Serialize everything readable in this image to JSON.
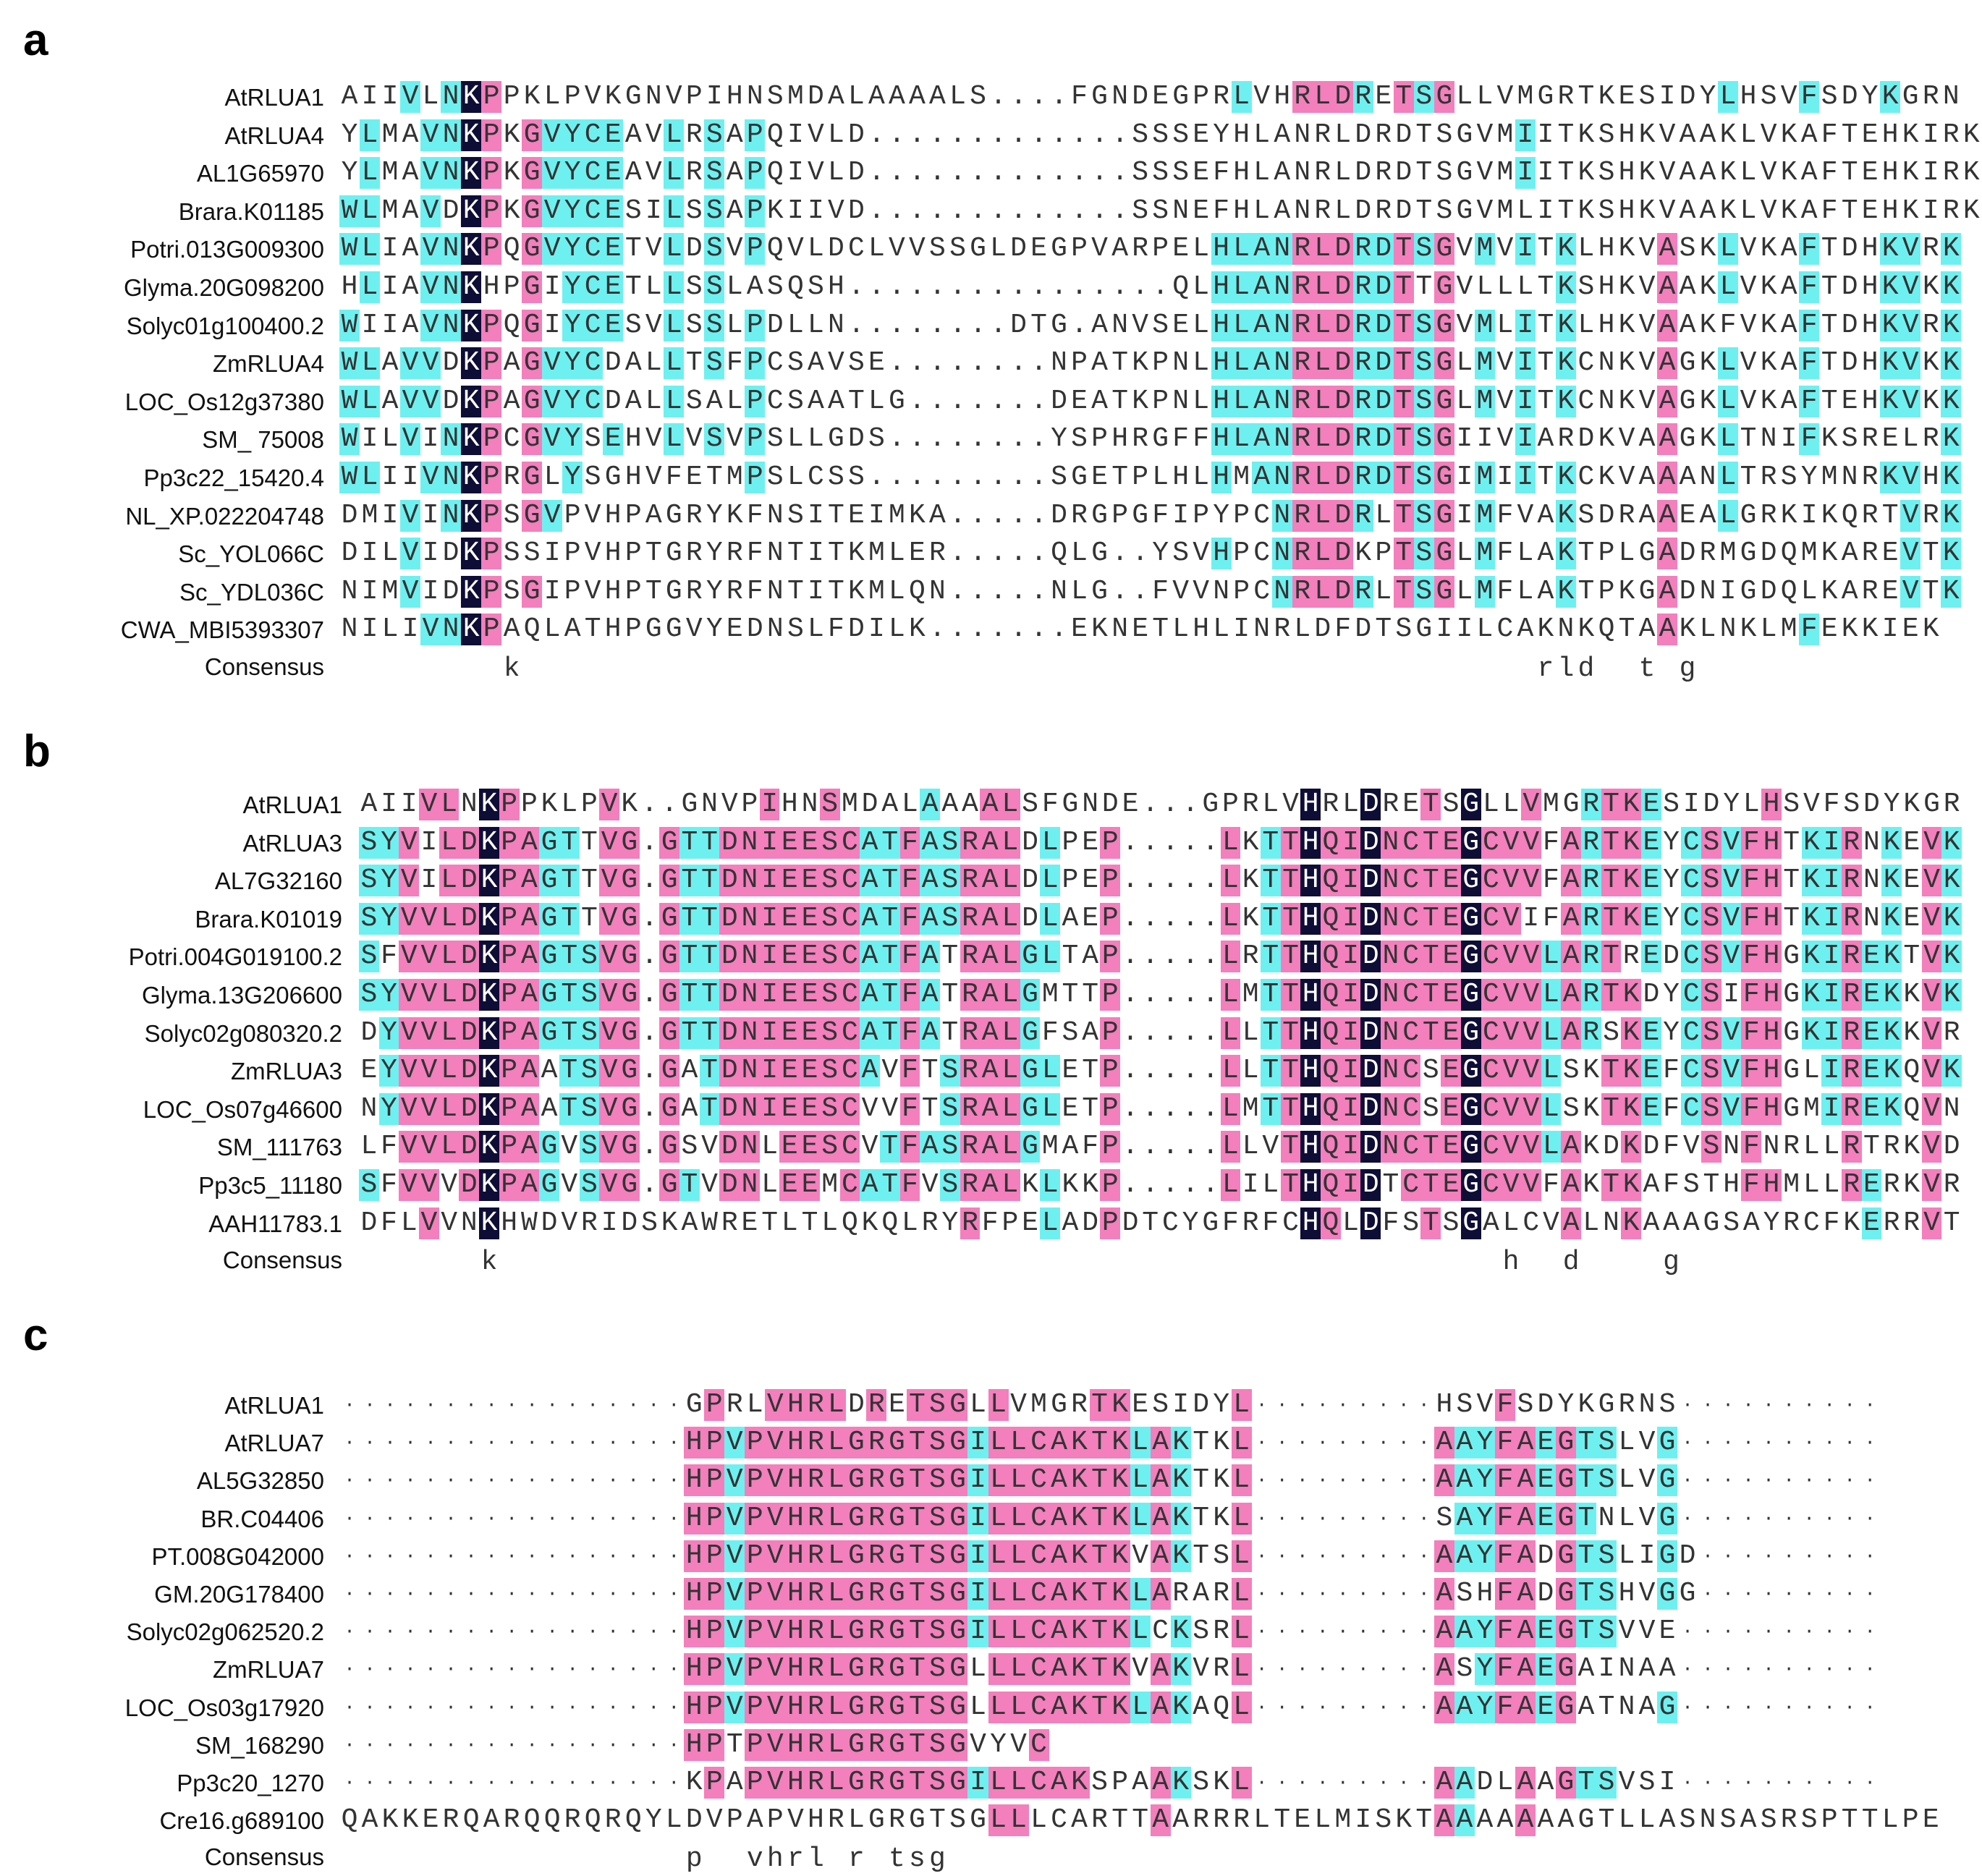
{
  "colors": {
    "identical": "#0d0d36",
    "high": "#f37fbd",
    "medium": "#6ff0f0"
  },
  "panels": [
    {
      "letter": "a",
      "consensus_label": "Consensus",
      "consensus": "        k                                                  rld  t g             ",
      "rows": [
        {
          "name": "AtRLUA1",
          "seq": "AIIVLNKPPKLPVKGNVPIHNSMDALAAAALS....FGNDEGPRLVHRLDRETSGLLVMGRTKESIDYLHSVFSDYKGRN",
          "k": "......X..............................................XXX.X.X.....................",
          "p": ".....................................................................................",
          "b": ".................................................................................."
        },
        {
          "name": "AtRLUA4",
          "seq": "YLMAVNKPKGVYCEAVLRSAPQIVLD.............SSSEYHLANRLDRDTSGVMIITKSHKVAAKLVKAFTEHKIRK",
          "k": "......X..............................................XXX.X.X.....................",
          "p": ".",
          "b": "."
        },
        {
          "name": "AL1G65970",
          "seq": "YLMAVNKPKGVYCEAVLRSAPQIVLD.............SSSEFHLANRLDRDTSGVMIITKSHKVAAKLVKAFTEHKIRK",
          "k": "......X..............................................XXX.X.X.....................",
          "p": ".",
          "b": "."
        },
        {
          "name": "Brara.K01185",
          "seq": "WLMAVDKPKGVYCESILSSAPKIIVD.............SSNEFHLANRLDRDTSGVMLITKSHKVAAKLVKAFTEHKIRK",
          "k": "......X..............................................XXX.X.X.....................",
          "p": ".",
          "b": "."
        },
        {
          "name": "Potri.013G009300",
          "seq": "WLIAVNKPQGVYCETVLDSVPQVLDCLVVSSGLDEGPVARPELHLANRLDRDTSGVMVITKLHKVASKLVKAFTDHKVRK",
          "k": "......X..............................................XXX.X.X.....................",
          "p": ".",
          "b": "."
        },
        {
          "name": "Glyma.20G098200",
          "seq": "HLIAVNKHPGIYCETLLSSLASQSH................QLHLANRLDRDTTGVLLLTKSHKVAAKLVKAFTDHKVKK",
          "k": "......X..............................................XXX.X.X.....................",
          "p": ".",
          "b": "."
        },
        {
          "name": "Solyc01g100400.2",
          "seq": "WIIAVNKPQGIYCESVLSSLPDLLN........DTG.ANVSELHLANRLDRDTSGVMLITKLHKVAAKFVKAFTDHKVRK",
          "k": "......X..............................................XXX.X.X.....................",
          "p": ".",
          "b": "."
        },
        {
          "name": "ZmRLUA4",
          "seq": "WLAVVDKPAGVYCDALLTSFPCSAVSE........NPATKPNLHLANRLDRDTSGLMVITKCNKVAGKLVKAFTDHKVKK",
          "k": "......X..............................................XXX.X.X.....................",
          "p": ".",
          "b": "."
        },
        {
          "name": "LOC_Os12g37380",
          "seq": "WLAVVDKPAGVYCDALLSALPCSAATLG.......DEATKPNLHLANRLDRDTSGLMVITKCNKVAGKLVKAFTEHKVKK",
          "k": "......X..............................................XXX.X.X.....................",
          "p": ".",
          "b": "."
        },
        {
          "name": "SM_ 75008",
          "seq": "WILVINKPCGVYSEHVLVSVPSLLGDS........YSPHRGFFHLANRLDRDTSGIIVIARDKVAAGKLTNIFKSRELRK",
          "k": "......X..............................................XXX.X.X.....................",
          "p": ".",
          "b": "."
        },
        {
          "name": "Pp3c22_15420.4",
          "seq": "WLIIVNKPRGLYSGHVFETMPSLCSS.........SGETPLHLHMANRLDRDTSGIMIITKCKVAAANLTRSYMNRKVHK",
          "k": "......X..............................................XXX.X.X.....................",
          "p": ".",
          "b": "."
        },
        {
          "name": "NL_XP.022204748",
          "seq": "DMIVINKPSGVPVHPAGRYKFNSITEIMKA.....DRGPGFIPYPCNRLDRLTSGIMFVAKSDRAAEALGRKIKQRTVRK",
          "k": "......X..............................................XXX.X.X.....................",
          "p": ".",
          "b": "."
        },
        {
          "name": "Sc_YOL066C",
          "seq": "DILVIDKPSSIPVHPTGRYRFNTITKMLER.....QLG..YSVHPCNRLDKPTSGLMFLAKTPLGADRMGDQMKAREVTK",
          "k": "......X..............................................XXX.X.X.....................",
          "p": ".",
          "b": "."
        },
        {
          "name": "Sc_YDL036C",
          "seq": "NIMVIDKPSGIPVHPTGRYRFNTITKMLQN.....NLG..FVVNPCNRLDRLTSGLMFLAKTPKGADNIGDQLKAREVTK",
          "k": "......X..............................................XXX.X.X.....................",
          "p": ".",
          "b": "."
        },
        {
          "name": "CWA_MBI5393307",
          "seq": "NILIVNKPAQLATHPGGVYEDNSLFDILK.......EKNETLHLINRLDFDTSGIILCAKNKQTAAKLNKLMFEKKIEK",
          "k": "......X..............................................XXX.X.X.....................",
          "p": ".",
          "b": "."
        }
      ]
    },
    {
      "letter": "b",
      "consensus_label": "Consensus",
      "consensus": "      k                                                  h  d    g              ",
      "rows": [
        {
          "name": "AtRLUA1",
          "seq": "AIIVLNKPPKLPVK..GNVPIHNSMDALAAAALSFGNDE...GPRLVHRLDRETSGLLVMGRTKESIDYLHSVFSDYKGR"
        },
        {
          "name": "AtRLUA3",
          "seq": "SYVILDKPAGTTVG.GTTDNIEESCATFASRALDLPEP.....LKTTHQIDNCTEGCVVFARTKEYCSVFHTKIRNKEVK"
        },
        {
          "name": "AL7G32160",
          "seq": "SYVILDKPAGTTVG.GTTDNIEESCATFASRALDLPEP.....LKTTHQIDNCTEGCVVFARTKEYCSVFHTKIRNKEVK"
        },
        {
          "name": "Brara.K01019",
          "seq": "SYVVLDKPAGTTVG.GTTDNIEESCATFASRALDLAEP.....LKTTHQIDNCTEGCVIFARTKEYCSVFHTKIRNKEVK"
        },
        {
          "name": "Potri.004G019100.2",
          "seq": "SFVVLDKPAGTSVG.GTTDNIEESCATFATRALGLTAP.....LRTTHQIDNCTEGCVVLARTREDCSVFHGKIREKTVK"
        },
        {
          "name": "Glyma.13G206600",
          "seq": "SYVVLDKPAGTSVG.GTTDNIEESCATFATRALGMTTP.....LMTTHQIDNCTEGCVVLARTKDYCSIFHGKIREKKVK"
        },
        {
          "name": "Solyc02g080320.2",
          "seq": "DYVVLDKPAGTSVG.GTTDNIEESCATFATRALGFSAP.....LLTTHQIDNCTEGCVVLARSKEYCSVFHGKIREKKVR"
        },
        {
          "name": "ZmRLUA3",
          "seq": "EYVVLDKPAATSVG.GATDNIEESCAVFTSRALGLETP.....LLTTHQIDNCSEGCVVLSKTKEFCSVFHGLIREKQVK"
        },
        {
          "name": "LOC_Os07g46600",
          "seq": "NYVVLDKPAATSVG.GATDNIEESCVVFTSRALGLETP.....LMTTHQIDNCSEGCVVLSKTKEFCSVFHGMIREKQVN"
        },
        {
          "name": "SM_111763",
          "seq": "LFVVLDKPAGVSVG.GSVDNLEESCVTFASRALGMAFP.....LLVTHQIDNCTEGCVVLAKDKDFVSNFNRLLRTRKVD"
        },
        {
          "name": "Pp3c5_11180",
          "seq": "SFVVVDKPAGVSVG.GTVDNLEEMCATFVSRALKLKKP.....LILTHQIDTCTEGCVVFAKTKAFSTHFHMLLRERKVR"
        },
        {
          "name": "AAH11783.1",
          "seq": "DFLVVNKHWDVRIDSKAWRETLTLQKQLRYRFPELADPDTCYGFRFCHQLDFSTSGALCVALNKAAAGSAYRCFKERRVT"
        }
      ]
    },
    {
      "letter": "c",
      "consensus_label": "Consensus",
      "consensus": "                 p  vhrl r tsg                                                  ",
      "rows": [
        {
          "name": "AtRLUA1",
          "seq": "·················GPRLVHRLDRETSGLLVMGRTKESIDYL·········HSVFSDYKGRNS··········"
        },
        {
          "name": "AtRLUA7",
          "seq": "·················HPVPVHRLGRGTSGILLCAKTKLAKTKL·········AAYFAEGTSLVG··········"
        },
        {
          "name": "AL5G32850",
          "seq": "·················HPVPVHRLGRGTSGILLCAKTKLAKTKL·········AAYFAEGTSLVG··········"
        },
        {
          "name": "BR.C04406",
          "seq": "·················HPVPVHRLGRGTSGILLCAKTKLAKTKL·········SAYFAEGTNLVG··········"
        },
        {
          "name": "PT.008G042000",
          "seq": "·················HPVPVHRLGRGTSGILLCAKTKVAKTSL·········AAYFADGTSLIGD·········"
        },
        {
          "name": "GM.20G178400",
          "seq": "·················HPVPVHRLGRGTSGILLCAKTKLARARL·········ASHFADGTSHVGG·········"
        },
        {
          "name": "Solyc02g062520.2",
          "seq": "·················HPVPVHRLGRGTSGILLCAKTKLCKSRL·········AAYFAEGTSVVE··········"
        },
        {
          "name": "ZmRLUA7",
          "seq": "·················HPVPVHRLGRGTSGLLLCAKTKVAKVRL·········ASYFAEGAINAA··········"
        },
        {
          "name": "LOC_Os03g17920",
          "seq": "·················HPVPVHRLGRGTSGLLLCAKTKLAKAQL·········AAYFAEGATNAG··········"
        },
        {
          "name": "SM_168290",
          "seq": "·················HPTPVHRLGRGTSGVYVC"
        },
        {
          "name": "Pp3c20_1270",
          "seq": "·················KPAPVHRLGRGTSGILLCAKSPAAKSKL·········AADLAAGTSVSI··········"
        },
        {
          "name": "Cre16.g689100",
          "seq": "QAKKERQARQQRQRQYLDVPAPVHRLGRGTSGLLLCARTTAARRRLTELMISKTAAAAAAAGTLLASNSASRSPTTLPE"
        }
      ]
    }
  ]
}
